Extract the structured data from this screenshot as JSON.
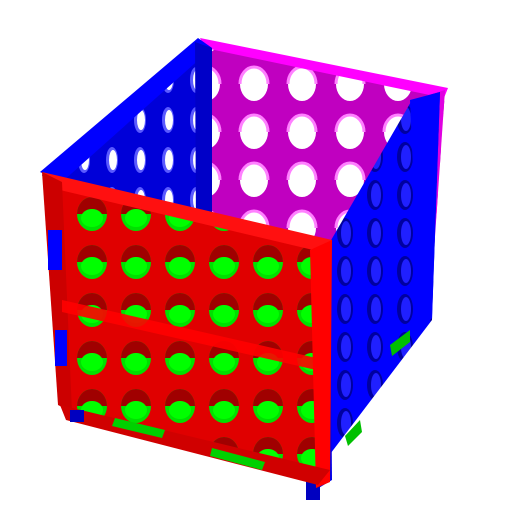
{
  "scene": {
    "subject": "perforated-box",
    "faces": {
      "front": {
        "color": "#ff0000",
        "hole_color": "#00ff00"
      },
      "right": {
        "color": "#0000ff"
      },
      "left": {
        "color": "#0000ff"
      },
      "back": {
        "color": "#ff00ff"
      },
      "floor": {
        "color": "#00ff00"
      }
    },
    "background": "#ffffff"
  }
}
